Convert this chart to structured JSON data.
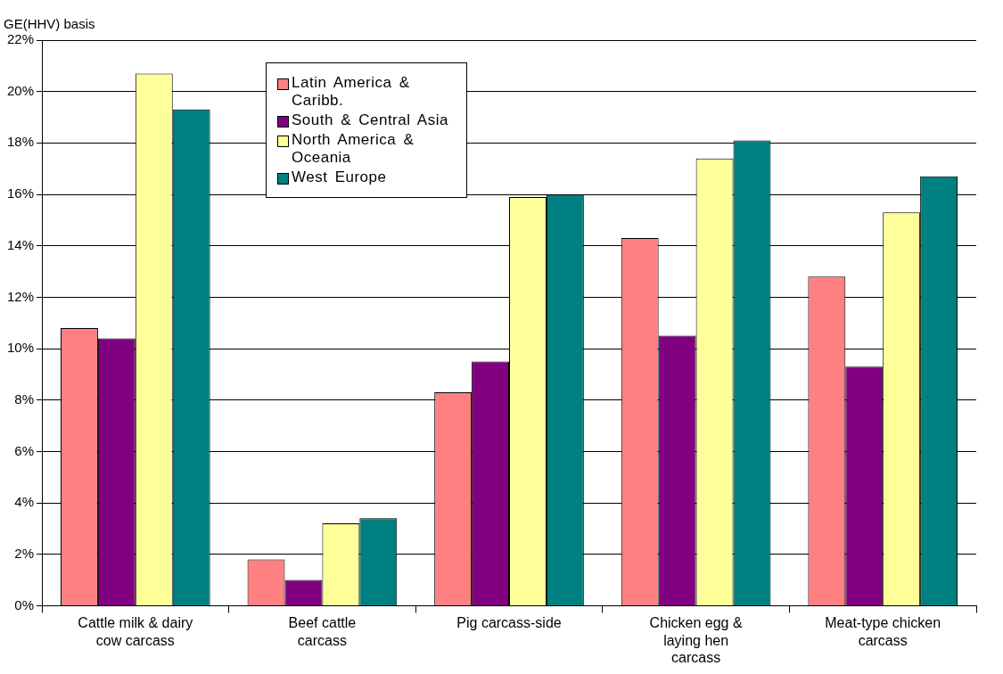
{
  "chart_data": {
    "type": "bar",
    "ylabel": "GE(HHV) basis",
    "categories": [
      "Cattle milk & dairy cow carcass",
      "Beef cattle carcass",
      "Pig carcass-side",
      "Chicken egg & laying hen carcass",
      "Meat-type chicken carcass"
    ],
    "series": [
      {
        "name": "Latin America & Caribb.",
        "color": "#ff8080",
        "values": [
          10.8,
          1.8,
          8.3,
          14.3,
          12.8
        ]
      },
      {
        "name": "South & Central Asia",
        "color": "#800080",
        "values": [
          10.4,
          1.0,
          9.5,
          10.5,
          9.3
        ]
      },
      {
        "name": "North America & Oceania",
        "color": "#ffff99",
        "values": [
          20.7,
          3.2,
          15.9,
          17.4,
          15.3
        ]
      },
      {
        "name": "West Europe",
        "color": "#008080",
        "values": [
          19.3,
          3.4,
          16.0,
          18.1,
          16.7
        ]
      }
    ],
    "ylim": [
      0,
      22
    ],
    "yticks": [
      {
        "value": 0,
        "label": "0%"
      },
      {
        "value": 2,
        "label": "2%"
      },
      {
        "value": 4,
        "label": "4%"
      },
      {
        "value": 6,
        "label": "6%"
      },
      {
        "value": 8,
        "label": "8%"
      },
      {
        "value": 10,
        "label": "10%"
      },
      {
        "value": 12,
        "label": "12%"
      },
      {
        "value": 14,
        "label": "14%"
      },
      {
        "value": 16,
        "label": "16%"
      },
      {
        "value": 18,
        "label": "18%"
      },
      {
        "value": 20,
        "label": "20%"
      },
      {
        "value": 22,
        "label": "22%"
      }
    ],
    "grid": "y",
    "legend": "top left"
  }
}
